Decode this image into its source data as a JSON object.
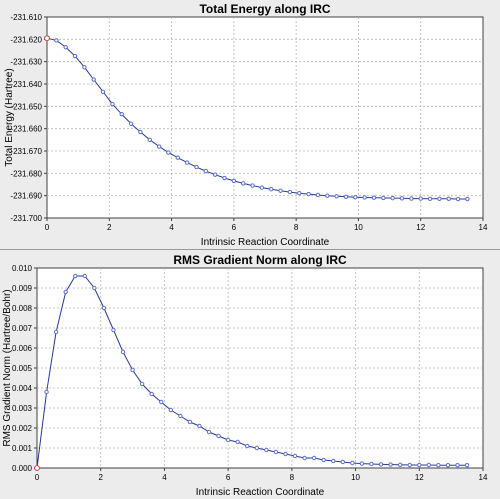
{
  "chart_data": [
    {
      "type": "line",
      "title": "Total Energy along IRC",
      "xlabel": "Intrinsic Reaction Coordinate",
      "ylabel": "Total Energy (Hartree)",
      "xlim": [
        0,
        14
      ],
      "ylim": [
        -231.7,
        -231.61
      ],
      "x_ticks": [
        "0",
        "2",
        "4",
        "6",
        "8",
        "10",
        "12",
        "14"
      ],
      "y_ticks": [
        "-231.610",
        "-231.620",
        "-231.630",
        "-231.640",
        "-231.650",
        "-231.660",
        "-231.670",
        "-231.680",
        "-231.690",
        "-231.700"
      ],
      "grid": true,
      "line_color": "#2b3a8c",
      "marker_color": "#5a6fd6",
      "first_marker_color": "#d04040",
      "x": [
        0,
        0.3,
        0.6,
        0.9,
        1.2,
        1.5,
        1.8,
        2.1,
        2.4,
        2.7,
        3.0,
        3.3,
        3.6,
        3.9,
        4.2,
        4.5,
        4.8,
        5.1,
        5.4,
        5.7,
        6.0,
        6.3,
        6.6,
        6.9,
        7.2,
        7.5,
        7.8,
        8.1,
        8.4,
        8.7,
        9.0,
        9.3,
        9.6,
        9.9,
        10.2,
        10.5,
        10.8,
        11.1,
        11.4,
        11.7,
        12.0,
        12.3,
        12.6,
        12.9,
        13.2,
        13.5
      ],
      "y": [
        -231.6195,
        -231.6205,
        -231.6235,
        -231.6275,
        -231.6325,
        -231.638,
        -231.6435,
        -231.649,
        -231.6535,
        -231.6578,
        -231.6615,
        -231.665,
        -231.668,
        -231.6707,
        -231.673,
        -231.6752,
        -231.6772,
        -231.679,
        -231.6806,
        -231.6821,
        -231.6834,
        -231.6845,
        -231.6855,
        -231.6864,
        -231.6871,
        -231.6878,
        -231.6884,
        -231.6889,
        -231.6893,
        -231.6897,
        -231.69,
        -231.6903,
        -231.6905,
        -231.6907,
        -231.6908,
        -231.6909,
        -231.691,
        -231.6911,
        -231.6912,
        -231.6913,
        -231.6913,
        -231.6914,
        -231.6914,
        -231.6914,
        -231.6915,
        -231.6915
      ]
    },
    {
      "type": "line",
      "title": "RMS Gradient Norm along IRC",
      "xlabel": "Intrinsic Reaction Coordinate",
      "ylabel": "RMS Gradient Norm (Hartree/Bohr)",
      "xlim": [
        0,
        14
      ],
      "ylim": [
        0.0,
        0.01
      ],
      "x_ticks": [
        "0",
        "2",
        "4",
        "6",
        "8",
        "10",
        "12",
        "14"
      ],
      "y_ticks": [
        "0.010",
        "0.009",
        "0.008",
        "0.007",
        "0.006",
        "0.005",
        "0.004",
        "0.003",
        "0.002",
        "0.001",
        "0.000"
      ],
      "grid": true,
      "line_color": "#2b3a8c",
      "marker_color": "#5a6fd6",
      "first_marker_color": "#d04040",
      "x": [
        0,
        0.3,
        0.6,
        0.9,
        1.2,
        1.5,
        1.8,
        2.1,
        2.4,
        2.7,
        3.0,
        3.3,
        3.6,
        3.9,
        4.2,
        4.5,
        4.8,
        5.1,
        5.4,
        5.7,
        6.0,
        6.3,
        6.6,
        6.9,
        7.2,
        7.5,
        7.8,
        8.1,
        8.4,
        8.7,
        9.0,
        9.3,
        9.6,
        9.9,
        10.2,
        10.5,
        10.8,
        11.1,
        11.4,
        11.7,
        12.0,
        12.3,
        12.6,
        12.9,
        13.2,
        13.5
      ],
      "y": [
        0.0,
        0.0038,
        0.0068,
        0.0088,
        0.0096,
        0.0096,
        0.009,
        0.008,
        0.0069,
        0.0058,
        0.0049,
        0.0042,
        0.0037,
        0.0033,
        0.0029,
        0.0026,
        0.0023,
        0.0021,
        0.0018,
        0.0016,
        0.0014,
        0.0013,
        0.0011,
        0.001,
        0.0009,
        0.0008,
        0.0007,
        0.0006,
        0.0005,
        0.0005,
        0.0004,
        0.00035,
        0.0003,
        0.00025,
        0.00022,
        0.0002,
        0.00018,
        0.00017,
        0.00016,
        0.00015,
        0.00015,
        0.00015,
        0.00014,
        0.00014,
        0.00014,
        0.00014
      ]
    }
  ]
}
